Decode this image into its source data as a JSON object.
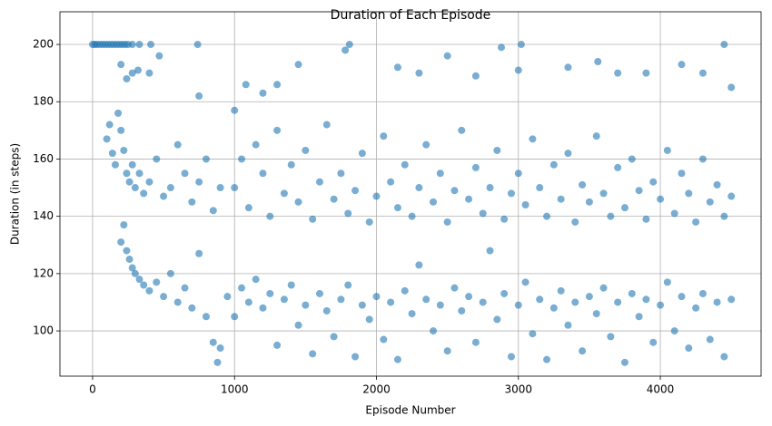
{
  "chart_data": {
    "type": "scatter",
    "title": "Duration of Each Episode",
    "x_label": "Episode Number",
    "y_label": "Duration (in steps)",
    "color": "#1f77b4",
    "grid": true,
    "xlim": [
      -230,
      4710
    ],
    "ylim": [
      84.2,
      211.4
    ],
    "xticks": [
      0,
      1000,
      2000,
      3000,
      4000
    ],
    "yticks": [
      100,
      120,
      140,
      160,
      180,
      200
    ],
    "x": [
      0,
      15,
      30,
      50,
      70,
      90,
      110,
      130,
      150,
      170,
      190,
      210,
      230,
      250,
      280,
      330,
      410,
      740,
      1810,
      3020,
      4450,
      100,
      120,
      140,
      160,
      180,
      200,
      220,
      240,
      260,
      280,
      300,
      330,
      360,
      400,
      450,
      500,
      550,
      600,
      650,
      700,
      750,
      800,
      850,
      900,
      200,
      220,
      240,
      260,
      280,
      300,
      330,
      360,
      400,
      450,
      500,
      550,
      600,
      650,
      700,
      750,
      800,
      850,
      880,
      900,
      200,
      240,
      280,
      320,
      400,
      470,
      750,
      1000,
      1080,
      1200,
      1300,
      1450,
      1780,
      2150,
      2300,
      2500,
      2700,
      2880,
      3000,
      3350,
      3560,
      3700,
      3900,
      4150,
      4300,
      4500,
      1000,
      1050,
      1100,
      1150,
      1200,
      1250,
      1300,
      1350,
      1400,
      1450,
      1500,
      1550,
      1600,
      1650,
      1700,
      1750,
      1800,
      1850,
      1900,
      1950,
      2000,
      2050,
      2100,
      2150,
      2200,
      2250,
      2300,
      2350,
      2400,
      2450,
      2500,
      2550,
      2600,
      2650,
      2700,
      2750,
      2800,
      2850,
      2900,
      2950,
      3000,
      3050,
      3100,
      3150,
      3200,
      3250,
      3300,
      3350,
      3400,
      3450,
      3500,
      3550,
      3600,
      3650,
      3700,
      3750,
      3800,
      3850,
      3900,
      3950,
      4000,
      4050,
      4100,
      4150,
      4200,
      4250,
      4300,
      4350,
      4400,
      4450,
      4500,
      950,
      1000,
      1050,
      1100,
      1150,
      1200,
      1250,
      1300,
      1350,
      1400,
      1450,
      1500,
      1550,
      1600,
      1650,
      1700,
      1750,
      1800,
      1850,
      1900,
      1950,
      2000,
      2050,
      2100,
      2150,
      2200,
      2250,
      2300,
      2350,
      2400,
      2450,
      2500,
      2550,
      2600,
      2650,
      2700,
      2750,
      2800,
      2850,
      2900,
      2950,
      3000,
      3050,
      3100,
      3150,
      3200,
      3250,
      3300,
      3350,
      3400,
      3450,
      3500,
      3550,
      3600,
      3650,
      3700,
      3750,
      3800,
      3850,
      3900,
      3950,
      4000,
      4050,
      4100,
      4150,
      4200,
      4250,
      4300,
      4350,
      4400,
      4450,
      4500
    ],
    "values": [
      200,
      200,
      200,
      200,
      200,
      200,
      200,
      200,
      200,
      200,
      200,
      200,
      200,
      200,
      200,
      200,
      200,
      200,
      200,
      200,
      200,
      167,
      172,
      162,
      158,
      176,
      170,
      163,
      155,
      152,
      158,
      150,
      155,
      148,
      152,
      160,
      147,
      150,
      165,
      155,
      145,
      152,
      160,
      142,
      150,
      131,
      137,
      128,
      125,
      122,
      120,
      118,
      116,
      114,
      117,
      112,
      120,
      110,
      115,
      108,
      127,
      105,
      96,
      89,
      94,
      193,
      188,
      190,
      191,
      190,
      196,
      182,
      177,
      186,
      183,
      186,
      193,
      198,
      192,
      190,
      196,
      189,
      199,
      191,
      192,
      194,
      190,
      190,
      193,
      190,
      185,
      150,
      160,
      143,
      165,
      155,
      140,
      170,
      148,
      158,
      145,
      163,
      139,
      152,
      172,
      146,
      155,
      141,
      149,
      162,
      138,
      147,
      168,
      152,
      143,
      158,
      140,
      150,
      165,
      145,
      155,
      138,
      149,
      170,
      146,
      157,
      141,
      150,
      163,
      139,
      148,
      155,
      144,
      167,
      150,
      140,
      158,
      146,
      162,
      138,
      151,
      145,
      168,
      148,
      140,
      157,
      143,
      160,
      149,
      139,
      152,
      146,
      163,
      141,
      155,
      148,
      138,
      160,
      145,
      151,
      140,
      147,
      112,
      105,
      115,
      110,
      118,
      108,
      113,
      95,
      111,
      116,
      102,
      109,
      92,
      113,
      107,
      98,
      111,
      116,
      91,
      109,
      104,
      112,
      97,
      110,
      90,
      114,
      106,
      123,
      111,
      100,
      109,
      93,
      115,
      107,
      112,
      96,
      110,
      128,
      104,
      113,
      91,
      109,
      117,
      99,
      111,
      90,
      108,
      114,
      102,
      110,
      93,
      112,
      106,
      115,
      98,
      110,
      89,
      113,
      105,
      111,
      96,
      109,
      117,
      100,
      112,
      94,
      108,
      113,
      97,
      110,
      91,
      111
    ]
  }
}
